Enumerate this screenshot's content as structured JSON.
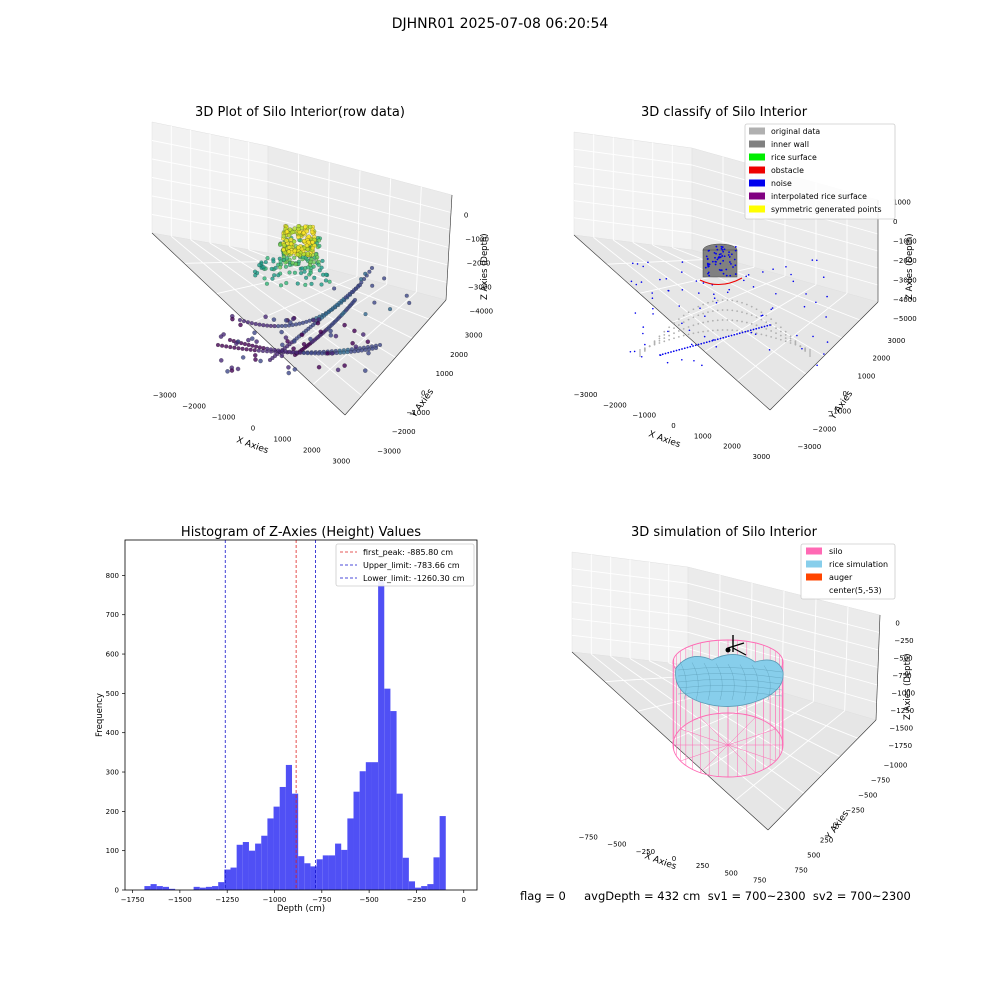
{
  "suptitle": "DJHNR01 2025-07-08 06:20:54",
  "footer": "flag = 0     avgDepth = 432 cm  sv1 = 700~2300  sv2 = 700~2300",
  "colors": {
    "hist_bar": "#5050f5",
    "first_peak": "#dd2222",
    "limits": "#1111cc",
    "silo": "#ff69b4",
    "rice_simulation": "#87ceeb",
    "auger": "#ff4500",
    "original_data": "#b0b0b0",
    "inner_wall": "#808080",
    "rice_surface": "#00ee00",
    "obstacle": "#ee0000",
    "noise": "#0000ee",
    "interpolated_rice_surface": "#800080",
    "symmetric_generated_points": "#ffff00"
  },
  "chart_data": [
    {
      "type": "scatter",
      "projection": "3d",
      "title": "3D Plot of Silo Interior(row data)",
      "xlabel": "X Axies",
      "ylabel": "Y Axies",
      "zlabel": "Z Axies (Depth)",
      "xticks": [
        "−3000",
        "−2000",
        "−1000",
        "0",
        "1000",
        "2000",
        "3000"
      ],
      "yticks": [
        "−3000",
        "−2000",
        "−1000",
        "0",
        "1000",
        "2000",
        "3000"
      ],
      "zticks": [
        "0",
        "−1000",
        "−2000",
        "−3000",
        "−4000"
      ],
      "colormap": "viridis by depth",
      "grid": true
    },
    {
      "type": "scatter",
      "projection": "3d",
      "title": "3D classify of Silo Interior",
      "xlabel": "X Axies",
      "ylabel": "Y Axies",
      "zlabel": "Z Axies (Depth)",
      "xticks": [
        "−3000",
        "−2000",
        "−1000",
        "0",
        "1000",
        "2000",
        "3000"
      ],
      "yticks": [
        "−3000",
        "−2000",
        "−1000",
        "0",
        "1000",
        "2000",
        "3000"
      ],
      "zticks": [
        "1000",
        "0",
        "−1000",
        "−2000",
        "−3000",
        "−4000",
        "−5000"
      ],
      "legend_position": "top-right",
      "legend": [
        {
          "label": "original data",
          "color": "#b0b0b0"
        },
        {
          "label": "inner wall",
          "color": "#808080"
        },
        {
          "label": "rice surface",
          "color": "#00ee00"
        },
        {
          "label": "obstacle",
          "color": "#ee0000"
        },
        {
          "label": "noise",
          "color": "#0000ee"
        },
        {
          "label": "interpolated rice surface",
          "color": "#800080"
        },
        {
          "label": "symmetric generated points",
          "color": "#ffff00"
        }
      ],
      "grid": true
    },
    {
      "type": "bar",
      "title": "Histogram of Z-Axies (Height) Values",
      "xlabel": "Depth (cm)",
      "ylabel": "Frequency",
      "xlim": [
        -1790,
        70
      ],
      "ylim": [
        0,
        890
      ],
      "xticks": [
        -1750,
        -1500,
        -1250,
        -1000,
        -750,
        -500,
        -250,
        0
      ],
      "xtick_labels": [
        "−1750",
        "−1500",
        "−1250",
        "−1000",
        "−750",
        "−500",
        "−250",
        "0"
      ],
      "yticks": [
        0,
        100,
        200,
        300,
        400,
        500,
        600,
        700,
        800
      ],
      "bin_start": -1720,
      "bin_width": 32.5,
      "values": [
        0,
        10,
        15,
        10,
        8,
        3,
        0,
        0,
        0,
        8,
        6,
        8,
        10,
        20,
        52,
        57,
        115,
        122,
        100,
        118,
        138,
        182,
        212,
        262,
        318,
        245,
        86,
        68,
        60,
        78,
        88,
        88,
        118,
        102,
        182,
        250,
        302,
        325,
        325,
        785,
        512,
        455,
        245,
        82,
        22,
        6,
        10,
        15,
        83,
        188
      ],
      "lines": [
        {
          "label": "first_peak: -885.80 cm",
          "x": -885.8,
          "color": "#dd2222"
        },
        {
          "label": "Upper_limit: -783.66 cm",
          "x": -783.66,
          "color": "#1111cc"
        },
        {
          "label": "Lower_limit: -1260.30 cm",
          "x": -1260.3,
          "color": "#1111cc"
        }
      ],
      "legend_position": "top-right"
    },
    {
      "type": "surface",
      "projection": "3d",
      "title": "3D simulation of Silo Interior",
      "xlabel": "X Axies",
      "ylabel": "Y Axies",
      "zlabel": "Z Axies (Depth)",
      "xticks": [
        "−750",
        "−500",
        "−250",
        "0",
        "250",
        "500",
        "750"
      ],
      "yticks": [
        "750",
        "500",
        "250",
        "0",
        "−250",
        "−500",
        "−750",
        "−1000"
      ],
      "zticks": [
        "0",
        "−250",
        "−500",
        "−750",
        "−1000",
        "−1250",
        "−1500",
        "−1750"
      ],
      "legend_position": "top-right",
      "legend": [
        {
          "label": "silo",
          "color": "#ff69b4"
        },
        {
          "label": "rice simulation",
          "color": "#87ceeb"
        },
        {
          "label": "auger",
          "color": "#ff4500"
        },
        {
          "label": "center(5,-53)",
          "color": ""
        }
      ],
      "grid": true
    }
  ]
}
